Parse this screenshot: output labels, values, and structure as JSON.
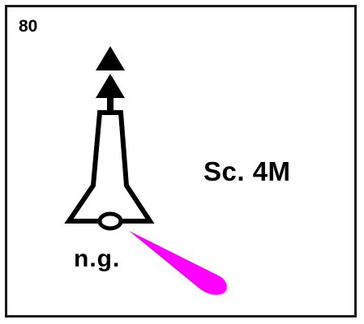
{
  "card": {
    "number": "80",
    "light_description": "Sc. 4M",
    "colour_label": "n.g."
  },
  "colors": {
    "flare": "#ff00ff",
    "ink": "#000000",
    "border": "#1a1a1a"
  },
  "icons": {
    "topmark": "two-cones-pointing-up",
    "structure": "beacon-tower",
    "light_flare": "magenta-light-flare"
  }
}
